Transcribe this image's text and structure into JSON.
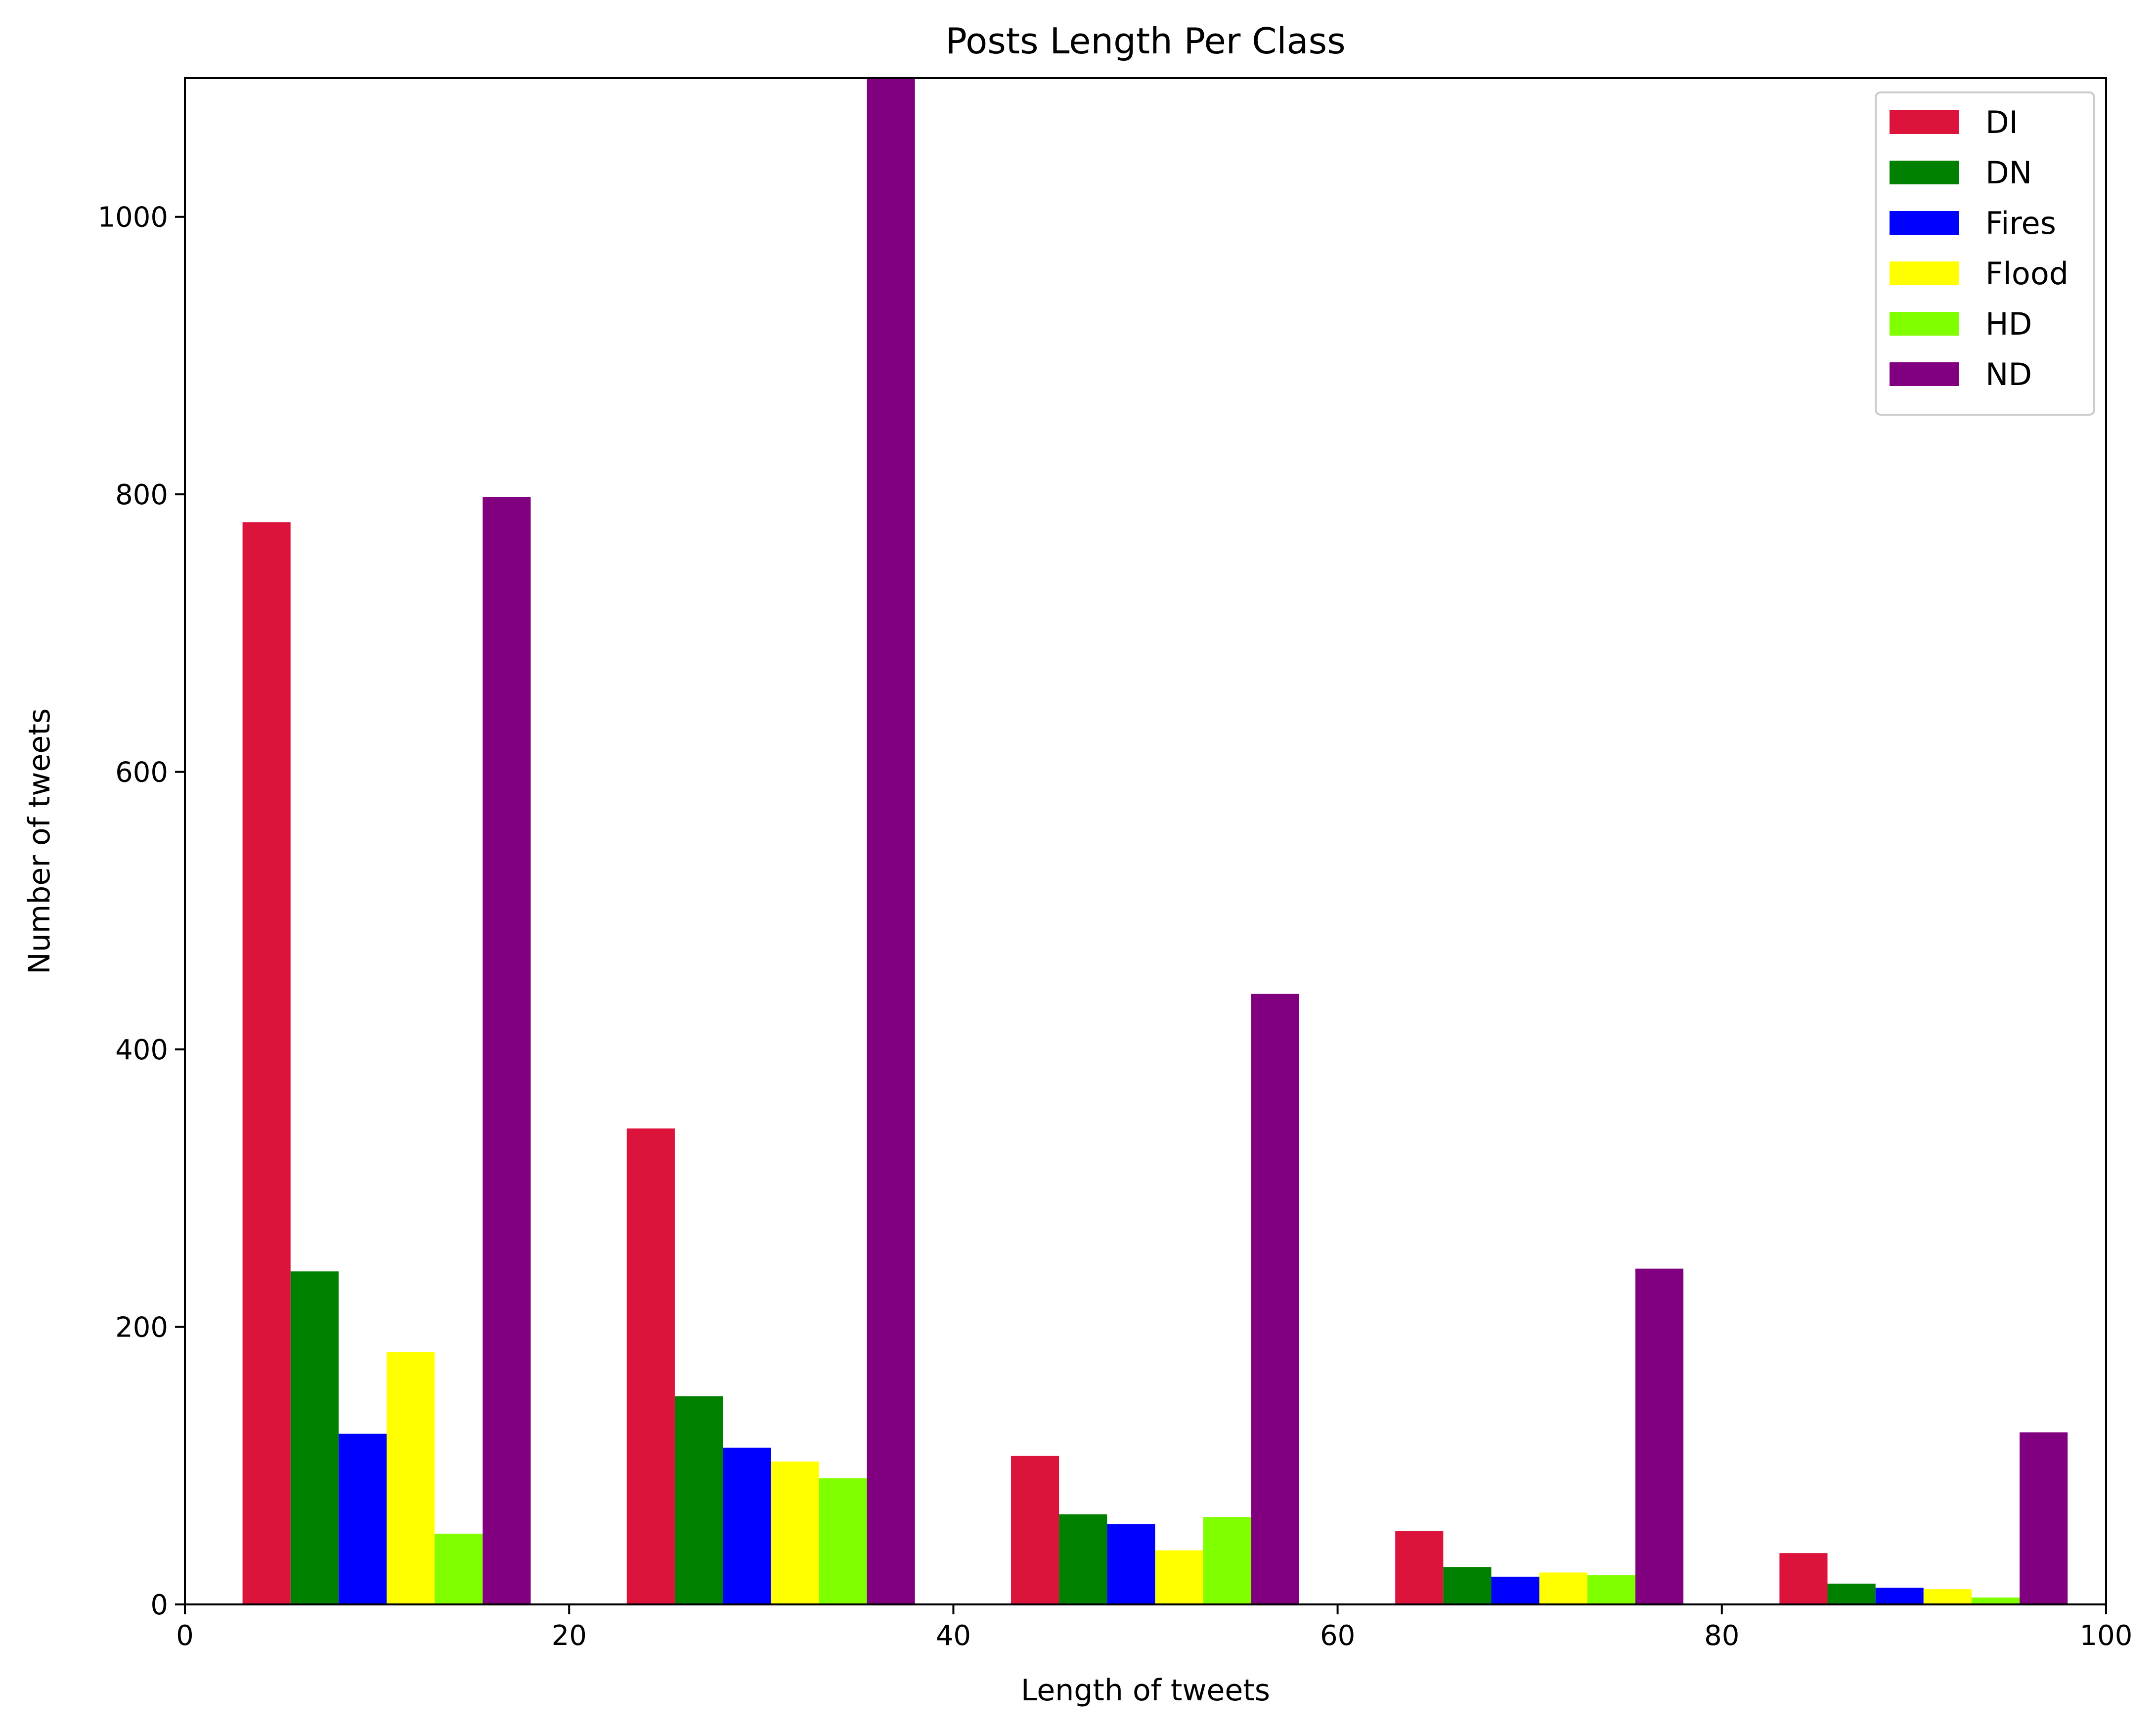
{
  "chart_data": {
    "type": "bar",
    "title": "Posts Length Per Class",
    "xlabel": "Length of tweets",
    "ylabel": "Number of tweets",
    "xlim": [
      0,
      100
    ],
    "ylim": [
      0,
      1100
    ],
    "xticks": [
      "0",
      "20",
      "40",
      "60",
      "80",
      "100"
    ],
    "xtick_values": [
      0,
      20,
      40,
      60,
      80,
      100
    ],
    "yticks": [
      "0",
      "200",
      "400",
      "600",
      "800",
      "1000"
    ],
    "ytick_values": [
      0,
      200,
      400,
      600,
      800,
      1000
    ],
    "bin_edges": [
      3,
      23,
      43,
      63,
      83,
      103
    ],
    "legend_position": "upper right",
    "grid": false,
    "series": [
      {
        "name": "DI",
        "color": "#dc143c",
        "values": [
          780,
          343,
          107,
          53,
          37
        ]
      },
      {
        "name": "DN",
        "color": "#008000",
        "values": [
          240,
          150,
          65,
          27,
          15
        ]
      },
      {
        "name": "Fires",
        "color": "#0000ff",
        "values": [
          123,
          113,
          58,
          20,
          12
        ]
      },
      {
        "name": "Flood",
        "color": "#ffff00",
        "values": [
          182,
          103,
          39,
          23,
          11
        ]
      },
      {
        "name": "HD",
        "color": "#80ff00",
        "values": [
          51,
          91,
          63,
          21,
          5
        ]
      },
      {
        "name": "ND",
        "color": "#800080",
        "values": [
          798,
          1100,
          440,
          242,
          124
        ]
      }
    ]
  }
}
